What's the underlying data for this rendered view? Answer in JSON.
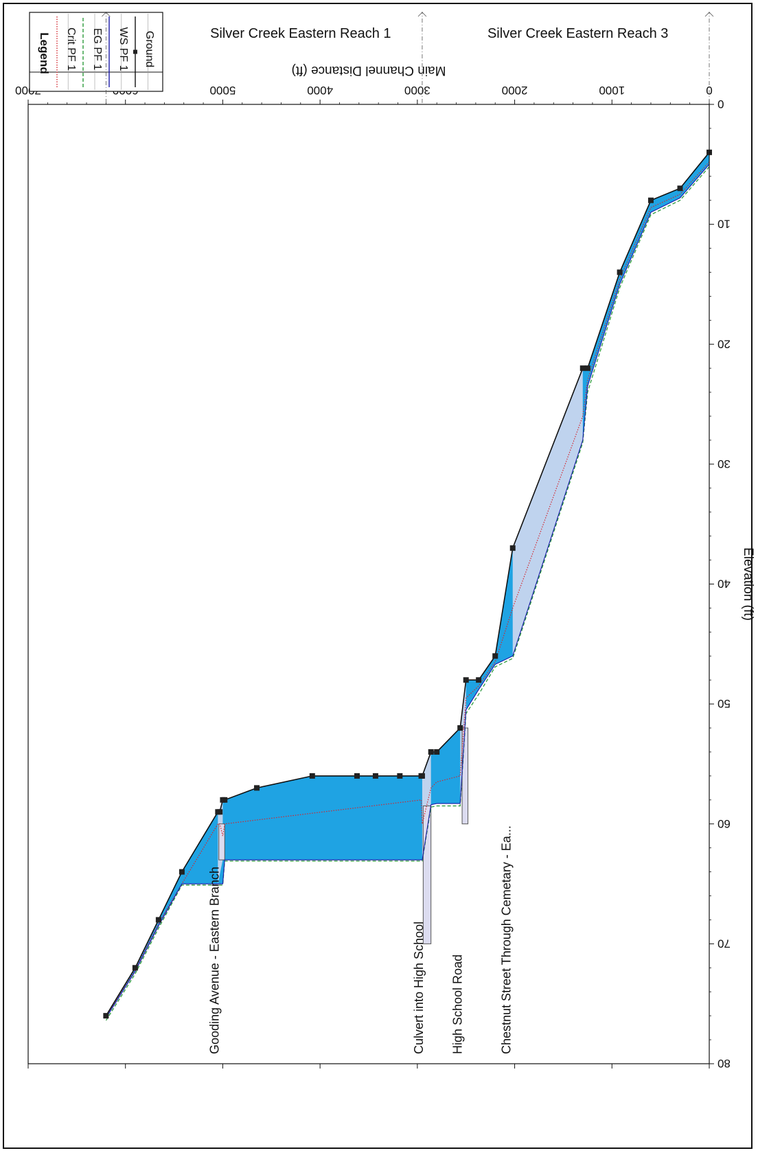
{
  "colors": {
    "water_fill": "#1fa3e3",
    "conveyance_fill": "#dcdcf0",
    "ground_line": "#111111",
    "crit_line": "#d2262e",
    "eg_line": "#2a9a3a",
    "ws_line": "#1a1aa8",
    "frame": "#111111"
  },
  "legend": {
    "title": "Legend",
    "items": [
      {
        "label": "Crit  PF 1",
        "style": "dotted",
        "color": "#d2262e"
      },
      {
        "label": "EG  PF 1",
        "style": "dashed",
        "color": "#2a9a3a"
      },
      {
        "label": "WS  PF 1",
        "style": "solid",
        "color": "#1a1aa8"
      },
      {
        "label": "Ground",
        "style": "solid-with-markers",
        "color": "#111111"
      }
    ]
  },
  "reaches": {
    "upstream": "Silver Creek Eastern Reach 1",
    "downstream": "Silver Creek Eastern Reach 3"
  },
  "structures": [
    {
      "label": "Gooding Avenue - Eastern Branch",
      "station": 5000
    },
    {
      "label": "Culvert  into High School",
      "station": 2900
    },
    {
      "label": "High School Road",
      "station": 2500
    },
    {
      "label": "Chestnut Street Through Cemetary - Ea...",
      "station": 2000
    }
  ],
  "chart_data": {
    "type": "line",
    "orientation": "rotated-180",
    "xlabel": "Main Channel Distance (ft)",
    "ylabel": "Elevation (ft)",
    "xlim": [
      0,
      7000
    ],
    "ylim": [
      0,
      80
    ],
    "xticks": [
      0,
      1000,
      2000,
      3000,
      4000,
      5000,
      6000,
      7000
    ],
    "yticks": [
      0,
      10,
      20,
      30,
      40,
      50,
      60,
      70,
      80
    ],
    "grid": false,
    "legend_position": "top-left",
    "series": [
      {
        "name": "Ground",
        "markers": true,
        "x": [
          0,
          300,
          600,
          920,
          1250,
          1300,
          2020,
          2200,
          2370,
          2500,
          2560,
          2800,
          2860,
          2950,
          2960,
          3180,
          3430,
          3620,
          4080,
          4650,
          4980,
          5000,
          5030,
          5050,
          5420,
          5660,
          5900,
          6200
        ],
        "y": [
          4,
          7,
          8,
          14,
          22,
          22,
          37,
          46,
          48,
          48,
          52,
          54,
          54,
          56,
          56,
          56,
          56,
          56,
          56,
          57,
          58,
          58,
          59,
          59,
          64,
          68,
          72,
          76
        ]
      },
      {
        "name": "WS  PF 1",
        "x": [
          0,
          300,
          600,
          920,
          1250,
          1300,
          2020,
          2200,
          2370,
          2500,
          2560,
          2800,
          2860,
          2950,
          2960,
          3180,
          3430,
          3620,
          4080,
          4650,
          4980,
          5000,
          5030,
          5050,
          5420,
          5660,
          5900,
          6200
        ],
        "y": [
          5,
          7.8,
          9,
          15,
          23.5,
          28,
          46,
          46.7,
          48.8,
          50.5,
          58.3,
          58.3,
          58.4,
          63,
          63,
          63,
          63,
          63,
          63,
          63,
          63,
          65,
          65,
          65,
          65,
          68.5,
          72.3,
          76.2
        ]
      },
      {
        "name": "EG  PF 1",
        "x": [
          0,
          300,
          600,
          920,
          1250,
          1300,
          2020,
          2200,
          2370,
          2500,
          2560,
          2800,
          2860,
          2950,
          2960,
          3180,
          3430,
          3620,
          4080,
          4650,
          4980,
          5000,
          5030,
          5050,
          5420,
          5660,
          5900,
          6200
        ],
        "y": [
          5.2,
          8,
          9.2,
          15.3,
          24,
          28.2,
          46.2,
          46.9,
          49.2,
          50.8,
          58.5,
          58.5,
          58.6,
          63.1,
          63.1,
          63.1,
          63.1,
          63.1,
          63.1,
          63.1,
          63.1,
          65.1,
          65.1,
          65.1,
          65.1,
          68.7,
          72.5,
          76.4
        ]
      },
      {
        "name": "Crit  PF 1",
        "x": [
          0,
          300,
          600,
          920,
          1250,
          1300,
          2020,
          2200,
          2370,
          2500,
          2560,
          2800,
          2860,
          2950,
          2960,
          4980,
          5000,
          5030,
          5050,
          5420,
          5660,
          5900,
          6200
        ],
        "y": [
          4.8,
          7.5,
          8.6,
          14.6,
          23,
          26,
          42,
          46.5,
          48.5,
          49.5,
          56,
          56.5,
          57,
          60,
          58,
          60,
          61,
          60,
          60,
          65,
          68.3,
          72.2,
          76.1
        ]
      }
    ],
    "structure_blocks": [
      {
        "x_start": 2480,
        "x_end": 2540,
        "y_bottom": 52,
        "y_top": 60
      },
      {
        "x_start": 2860,
        "x_end": 2940,
        "y_bottom": 58.5,
        "y_top": 70
      },
      {
        "x_start": 4980,
        "x_end": 5040,
        "y_bottom": 60,
        "y_top": 63
      }
    ],
    "reach_boundaries": [
      {
        "x": 0,
        "label": ""
      },
      {
        "x": 2950,
        "label": ""
      },
      {
        "x": 6200,
        "label": ""
      }
    ]
  }
}
